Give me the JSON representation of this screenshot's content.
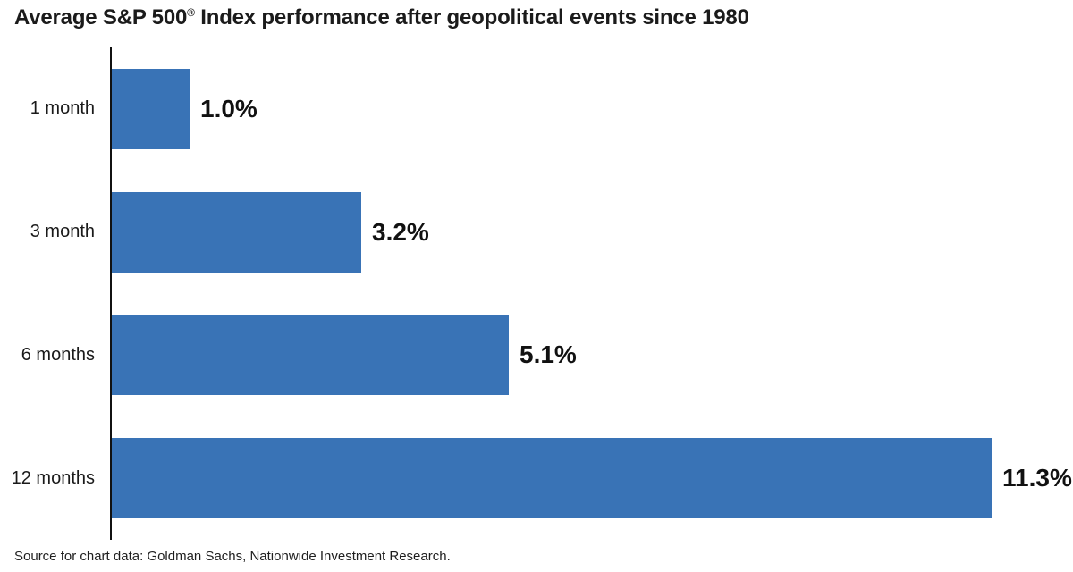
{
  "title": {
    "pre": "Average S&P 500",
    "registered_mark": "®",
    "post": " Index performance after geopolitical events since 1980"
  },
  "source_note": "Source for chart data: Goldman Sachs, Nationwide Investment Research.",
  "colors": {
    "bar": "#3973B6",
    "axis": "#111111",
    "text": "#1A1A1A"
  },
  "chart_data": {
    "type": "bar",
    "orientation": "horizontal",
    "title": "Average S&P 500® Index performance after geopolitical events since 1980",
    "categories": [
      "1 month",
      "3 month",
      "6 months",
      "12 months"
    ],
    "values": [
      1.0,
      3.2,
      5.1,
      11.3
    ],
    "value_labels": [
      "1.0%",
      "3.2%",
      "5.1%",
      "11.3%"
    ],
    "xlabel": "",
    "ylabel": "",
    "xlim": [
      0,
      11.3
    ],
    "grid": false,
    "legend_position": "none",
    "source": "Source for chart data: Goldman Sachs, Nationwide Investment Research."
  }
}
